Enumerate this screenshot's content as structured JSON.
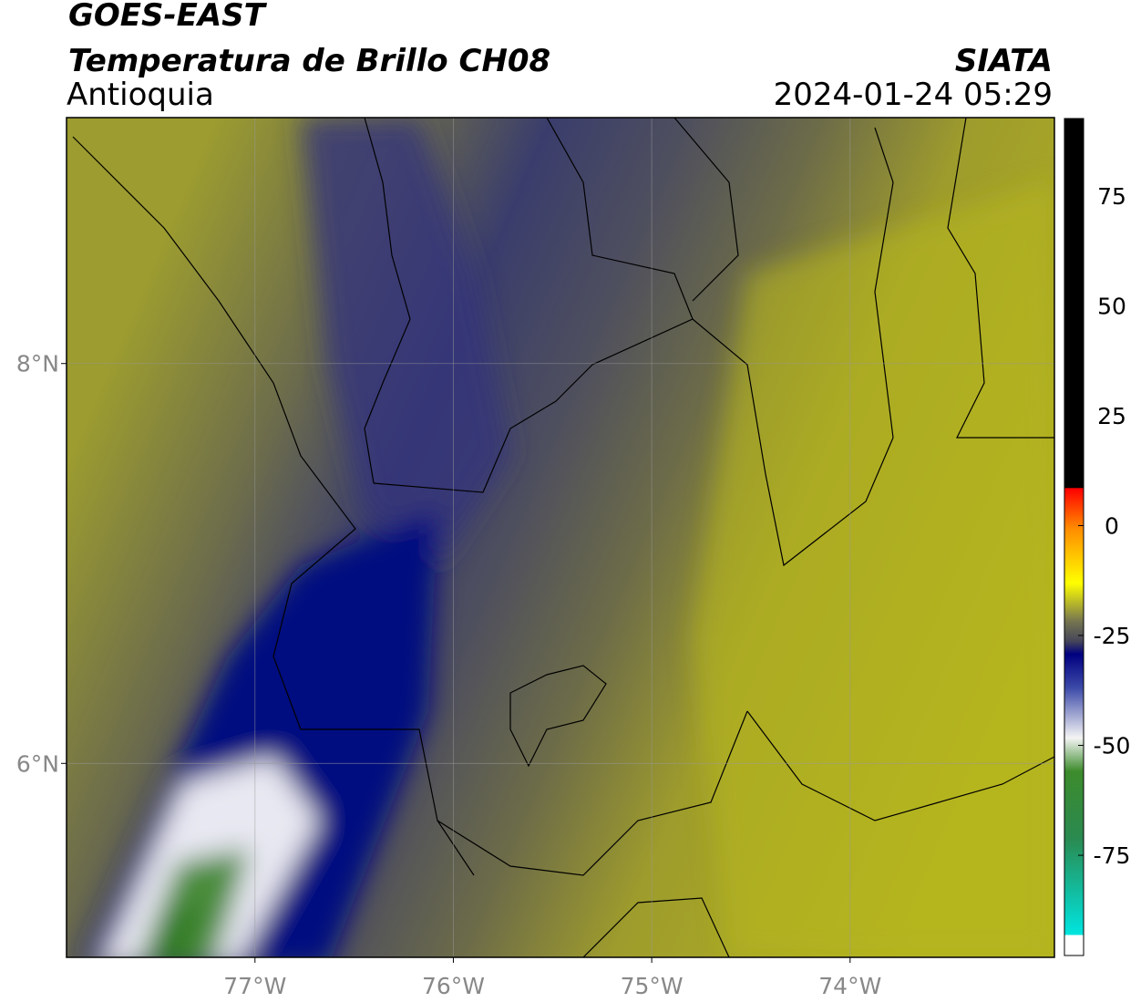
{
  "header": {
    "title": "GOES-EAST",
    "subtitle": "Temperatura de Brillo CH08",
    "region": "Antioquia",
    "source": "SIATA",
    "datetime": "2024-01-24 05:29"
  },
  "map": {
    "xlim": [
      -77.95,
      -72.97
    ],
    "ylim": [
      5.03,
      9.23
    ],
    "xticks": [
      {
        "value": -77,
        "label": "77°W"
      },
      {
        "value": -76,
        "label": "76°W"
      },
      {
        "value": -75,
        "label": "75°W"
      },
      {
        "value": -74,
        "label": "74°W"
      }
    ],
    "yticks": [
      {
        "value": 8,
        "label": "8°N"
      },
      {
        "value": 6,
        "label": "6°N"
      }
    ],
    "grid": true
  },
  "colorbar": {
    "lim": [
      -97.8,
      92.6
    ],
    "ticks": [
      75,
      50,
      25,
      0,
      -25,
      -50,
      -75
    ]
  }
}
